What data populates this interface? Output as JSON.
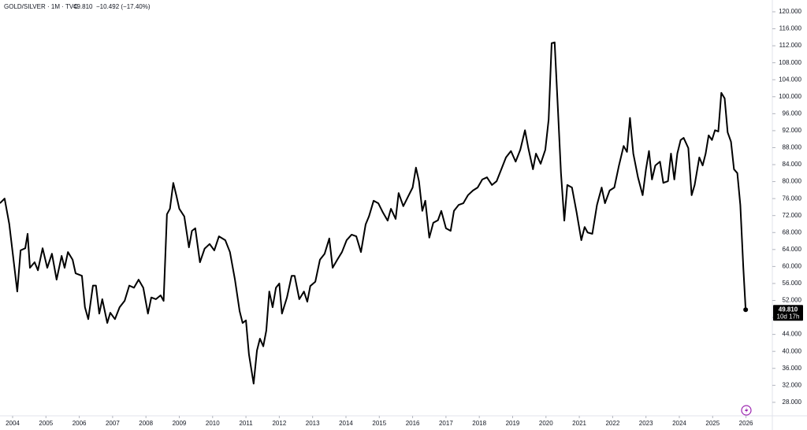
{
  "chart_data": {
    "type": "line",
    "symbol": "GOLD/SILVER · 1M · TVC",
    "price": "49.810",
    "change": "−10.492 (−17.40%)",
    "countdown": "10d 17h",
    "xlim": [
      2003.622,
      2026.79
    ],
    "ylim": [
      24.82,
      122.78
    ],
    "xticks": [
      2004,
      2005,
      2006,
      2007,
      2008,
      2009,
      2010,
      2011,
      2012,
      2013,
      2014,
      2015,
      2016,
      2017,
      2018,
      2019,
      2020,
      2021,
      2022,
      2023,
      2024,
      2025,
      2026
    ],
    "yticks": [
      {
        "value": 28,
        "label": "28.000"
      },
      {
        "value": 32,
        "label": "32.000"
      },
      {
        "value": 36,
        "label": "36.000"
      },
      {
        "value": 40,
        "label": "40.000"
      },
      {
        "value": 44,
        "label": "44.000"
      },
      {
        "value": 48,
        "label": "48.000"
      },
      {
        "value": 52,
        "label": "52.000"
      },
      {
        "value": 56,
        "label": "56.000"
      },
      {
        "value": 60,
        "label": "60.000"
      },
      {
        "value": 64,
        "label": "64.000"
      },
      {
        "value": 68,
        "label": "68.000"
      },
      {
        "value": 72,
        "label": "72.000"
      },
      {
        "value": 76,
        "label": "76.000"
      },
      {
        "value": 80,
        "label": "80.000"
      },
      {
        "value": 84,
        "label": "84.000"
      },
      {
        "value": 88,
        "label": "88.000"
      },
      {
        "value": 92,
        "label": "92.000"
      },
      {
        "value": 96,
        "label": "96.000"
      },
      {
        "value": 100,
        "label": "100.000"
      },
      {
        "value": 104,
        "label": "104.000"
      },
      {
        "value": 108,
        "label": "108.000"
      },
      {
        "value": 112,
        "label": "112.000"
      },
      {
        "value": 116,
        "label": "116.000"
      },
      {
        "value": 120,
        "label": "120.000"
      }
    ],
    "color": "#000000",
    "x": [
      2003.62,
      2003.76,
      2003.9,
      2004.14,
      2004.24,
      2004.38,
      2004.45,
      2004.52,
      2004.66,
      2004.76,
      2004.9,
      2005.04,
      2005.18,
      2005.32,
      2005.47,
      2005.56,
      2005.66,
      2005.8,
      2005.89,
      2006.08,
      2006.17,
      2006.27,
      2006.41,
      2006.5,
      2006.6,
      2006.69,
      2006.84,
      2006.93,
      2007.07,
      2007.21,
      2007.36,
      2007.5,
      2007.64,
      2007.78,
      2007.92,
      2008.06,
      2008.16,
      2008.3,
      2008.44,
      2008.53,
      2008.63,
      2008.72,
      2008.82,
      2008.91,
      2009.0,
      2009.15,
      2009.29,
      2009.38,
      2009.48,
      2009.62,
      2009.76,
      2009.91,
      2010.05,
      2010.19,
      2010.38,
      2010.52,
      2010.67,
      2010.81,
      2010.9,
      2011.0,
      2011.09,
      2011.23,
      2011.33,
      2011.42,
      2011.52,
      2011.61,
      2011.7,
      2011.8,
      2011.9,
      2012.0,
      2012.08,
      2012.23,
      2012.37,
      2012.46,
      2012.6,
      2012.74,
      2012.84,
      2012.93,
      2013.08,
      2013.22,
      2013.36,
      2013.5,
      2013.6,
      2013.74,
      2013.88,
      2014.02,
      2014.17,
      2014.31,
      2014.45,
      2014.59,
      2014.69,
      2014.83,
      2014.97,
      2015.11,
      2015.25,
      2015.35,
      2015.49,
      2015.58,
      2015.72,
      2015.86,
      2016.0,
      2016.1,
      2016.19,
      2016.29,
      2016.38,
      2016.5,
      2016.62,
      2016.76,
      2016.86,
      2017.0,
      2017.14,
      2017.24,
      2017.38,
      2017.52,
      2017.66,
      2017.81,
      2017.95,
      2018.09,
      2018.23,
      2018.38,
      2018.52,
      2018.66,
      2018.8,
      2018.95,
      2019.09,
      2019.23,
      2019.37,
      2019.47,
      2019.61,
      2019.7,
      2019.84,
      2019.98,
      2020.08,
      2020.17,
      2020.26,
      2020.36,
      2020.45,
      2020.55,
      2020.64,
      2020.78,
      2020.92,
      2021.06,
      2021.16,
      2021.25,
      2021.39,
      2021.53,
      2021.67,
      2021.77,
      2021.91,
      2022.05,
      2022.19,
      2022.33,
      2022.43,
      2022.52,
      2022.62,
      2022.76,
      2022.9,
      2023.0,
      2023.09,
      2023.18,
      2023.28,
      2023.42,
      2023.52,
      2023.66,
      2023.75,
      2023.85,
      2023.94,
      2024.04,
      2024.13,
      2024.27,
      2024.37,
      2024.46,
      2024.6,
      2024.7,
      2024.79,
      2024.88,
      2024.98,
      2025.07,
      2025.17,
      2025.26,
      2025.36,
      2025.45,
      2025.55,
      2025.64,
      2025.74,
      2025.83,
      2025.92,
      2025.99
    ],
    "values": [
      74.9,
      76,
      70,
      54.1,
      63.8,
      64.3,
      67.7,
      59.7,
      61,
      59.1,
      64.3,
      59.7,
      63,
      56.9,
      62.5,
      59.7,
      63.4,
      61.6,
      58.4,
      57.8,
      50.4,
      47.6,
      55.5,
      55.5,
      48.9,
      52.3,
      46.7,
      49.1,
      47.6,
      50.4,
      51.9,
      55.5,
      55,
      56.9,
      55,
      48.9,
      52.7,
      52.3,
      53.2,
      51.9,
      72.3,
      73.6,
      79.7,
      76.8,
      73.6,
      71.8,
      64.5,
      68.4,
      69,
      61,
      64.2,
      65.3,
      63.8,
      67.1,
      66.2,
      63.4,
      56.9,
      49.5,
      46.7,
      47.3,
      39.3,
      32.4,
      40.2,
      43,
      41.2,
      44.9,
      54.1,
      50.4,
      55,
      56,
      48.9,
      52.7,
      57.8,
      57.8,
      52.3,
      54.1,
      51.7,
      55.4,
      56.4,
      61.6,
      63,
      66.6,
      59.7,
      61.6,
      63.4,
      66.2,
      67.5,
      67.1,
      63.4,
      69.9,
      71.8,
      75.5,
      74.9,
      72.7,
      70.8,
      73.6,
      71.2,
      77.3,
      74.2,
      76.4,
      78.6,
      83.3,
      80.1,
      73.1,
      75.5,
      66.8,
      70.3,
      70.9,
      73.1,
      69,
      68.4,
      73.1,
      74.5,
      74.9,
      76.8,
      77.9,
      78.6,
      80.5,
      81,
      79.2,
      80.1,
      82.9,
      85.7,
      87.2,
      84.7,
      87.5,
      92.1,
      87.9,
      82.9,
      86.6,
      84.2,
      87.5,
      94.6,
      112.6,
      112.8,
      96.8,
      82,
      70.8,
      79.2,
      78.6,
      72.7,
      66.2,
      69.3,
      68,
      67.7,
      74.5,
      78.6,
      74.9,
      77.9,
      78.6,
      83.8,
      88.4,
      87,
      95,
      86.6,
      81,
      76.8,
      82.9,
      87.2,
      80.5,
      83.8,
      84.7,
      79.7,
      80.1,
      86.6,
      80.5,
      86.6,
      89.8,
      90.3,
      87.9,
      76.8,
      79.2,
      85.7,
      83.8,
      86.6,
      90.9,
      89.8,
      92.1,
      91.8,
      100.9,
      99.6,
      91.6,
      89.4,
      82.9,
      82,
      74.5,
      59.7,
      49.81
    ]
  }
}
